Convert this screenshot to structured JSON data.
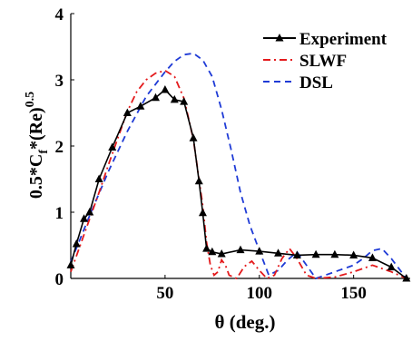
{
  "chart_data": {
    "type": "line",
    "title": "",
    "xlabel": "θ (deg.)",
    "ylabel_parts": {
      "base": "0.5*C",
      "sub": "f",
      "mid": "*(Re)",
      "sup": "0.5"
    },
    "xlim": [
      0,
      180
    ],
    "ylim": [
      0,
      4
    ],
    "xticks": [
      50,
      100,
      150
    ],
    "yticks": [
      0,
      1,
      2,
      3,
      4
    ],
    "xtick_labels": [
      "50",
      "100",
      "150"
    ],
    "ytick_labels": [
      "0",
      "1",
      "2",
      "3",
      "4"
    ],
    "grid": false,
    "legend_position": "top-right",
    "series": [
      {
        "name": "Experiment",
        "color": "#000000",
        "style": "solid",
        "marker": "triangle",
        "x": [
          0,
          3,
          7,
          10,
          15,
          22,
          30,
          37,
          45,
          50,
          55,
          60,
          65,
          68,
          70,
          72,
          75,
          80,
          90,
          100,
          110,
          120,
          130,
          140,
          150,
          160,
          170,
          178
        ],
        "y": [
          0.2,
          0.52,
          0.9,
          1.0,
          1.5,
          1.98,
          2.5,
          2.6,
          2.73,
          2.85,
          2.7,
          2.67,
          2.12,
          1.47,
          0.99,
          0.45,
          0.4,
          0.37,
          0.43,
          0.41,
          0.38,
          0.35,
          0.36,
          0.36,
          0.35,
          0.31,
          0.17,
          0.0
        ]
      },
      {
        "name": "SLWF",
        "color": "#e41a1c",
        "style": "dashdot",
        "marker": "none",
        "x": [
          0,
          5,
          10,
          15,
          20,
          25,
          30,
          35,
          40,
          45,
          50,
          55,
          60,
          65,
          70,
          72,
          74,
          76,
          78,
          80,
          82,
          84,
          88,
          92,
          96,
          100,
          104,
          108,
          112,
          116,
          120,
          125,
          130,
          140,
          150,
          160,
          170,
          178
        ],
        "y": [
          0.1,
          0.5,
          0.9,
          1.3,
          1.72,
          2.12,
          2.52,
          2.82,
          3.0,
          3.1,
          3.14,
          3.05,
          2.72,
          2.1,
          1.1,
          0.55,
          0.2,
          0.05,
          0.1,
          0.28,
          0.2,
          0.05,
          0.0,
          0.18,
          0.26,
          0.12,
          0.0,
          0.05,
          0.3,
          0.45,
          0.3,
          0.05,
          0.0,
          0.02,
          0.1,
          0.2,
          0.1,
          0.0
        ]
      },
      {
        "name": "DSL",
        "color": "#1f3bd6",
        "style": "dashed",
        "marker": "none",
        "x": [
          0,
          10,
          20,
          30,
          40,
          50,
          55,
          60,
          65,
          70,
          75,
          80,
          85,
          90,
          95,
          100,
          105,
          110,
          115,
          120,
          125,
          130,
          135,
          140,
          145,
          150,
          155,
          160,
          165,
          170,
          178
        ],
        "y": [
          0.25,
          0.95,
          1.62,
          2.22,
          2.75,
          3.12,
          3.28,
          3.38,
          3.4,
          3.3,
          3.05,
          2.55,
          1.95,
          1.3,
          0.8,
          0.42,
          0.05,
          0.12,
          0.28,
          0.4,
          0.2,
          0.0,
          0.05,
          0.1,
          0.15,
          0.2,
          0.3,
          0.42,
          0.45,
          0.3,
          0.0
        ]
      }
    ]
  }
}
